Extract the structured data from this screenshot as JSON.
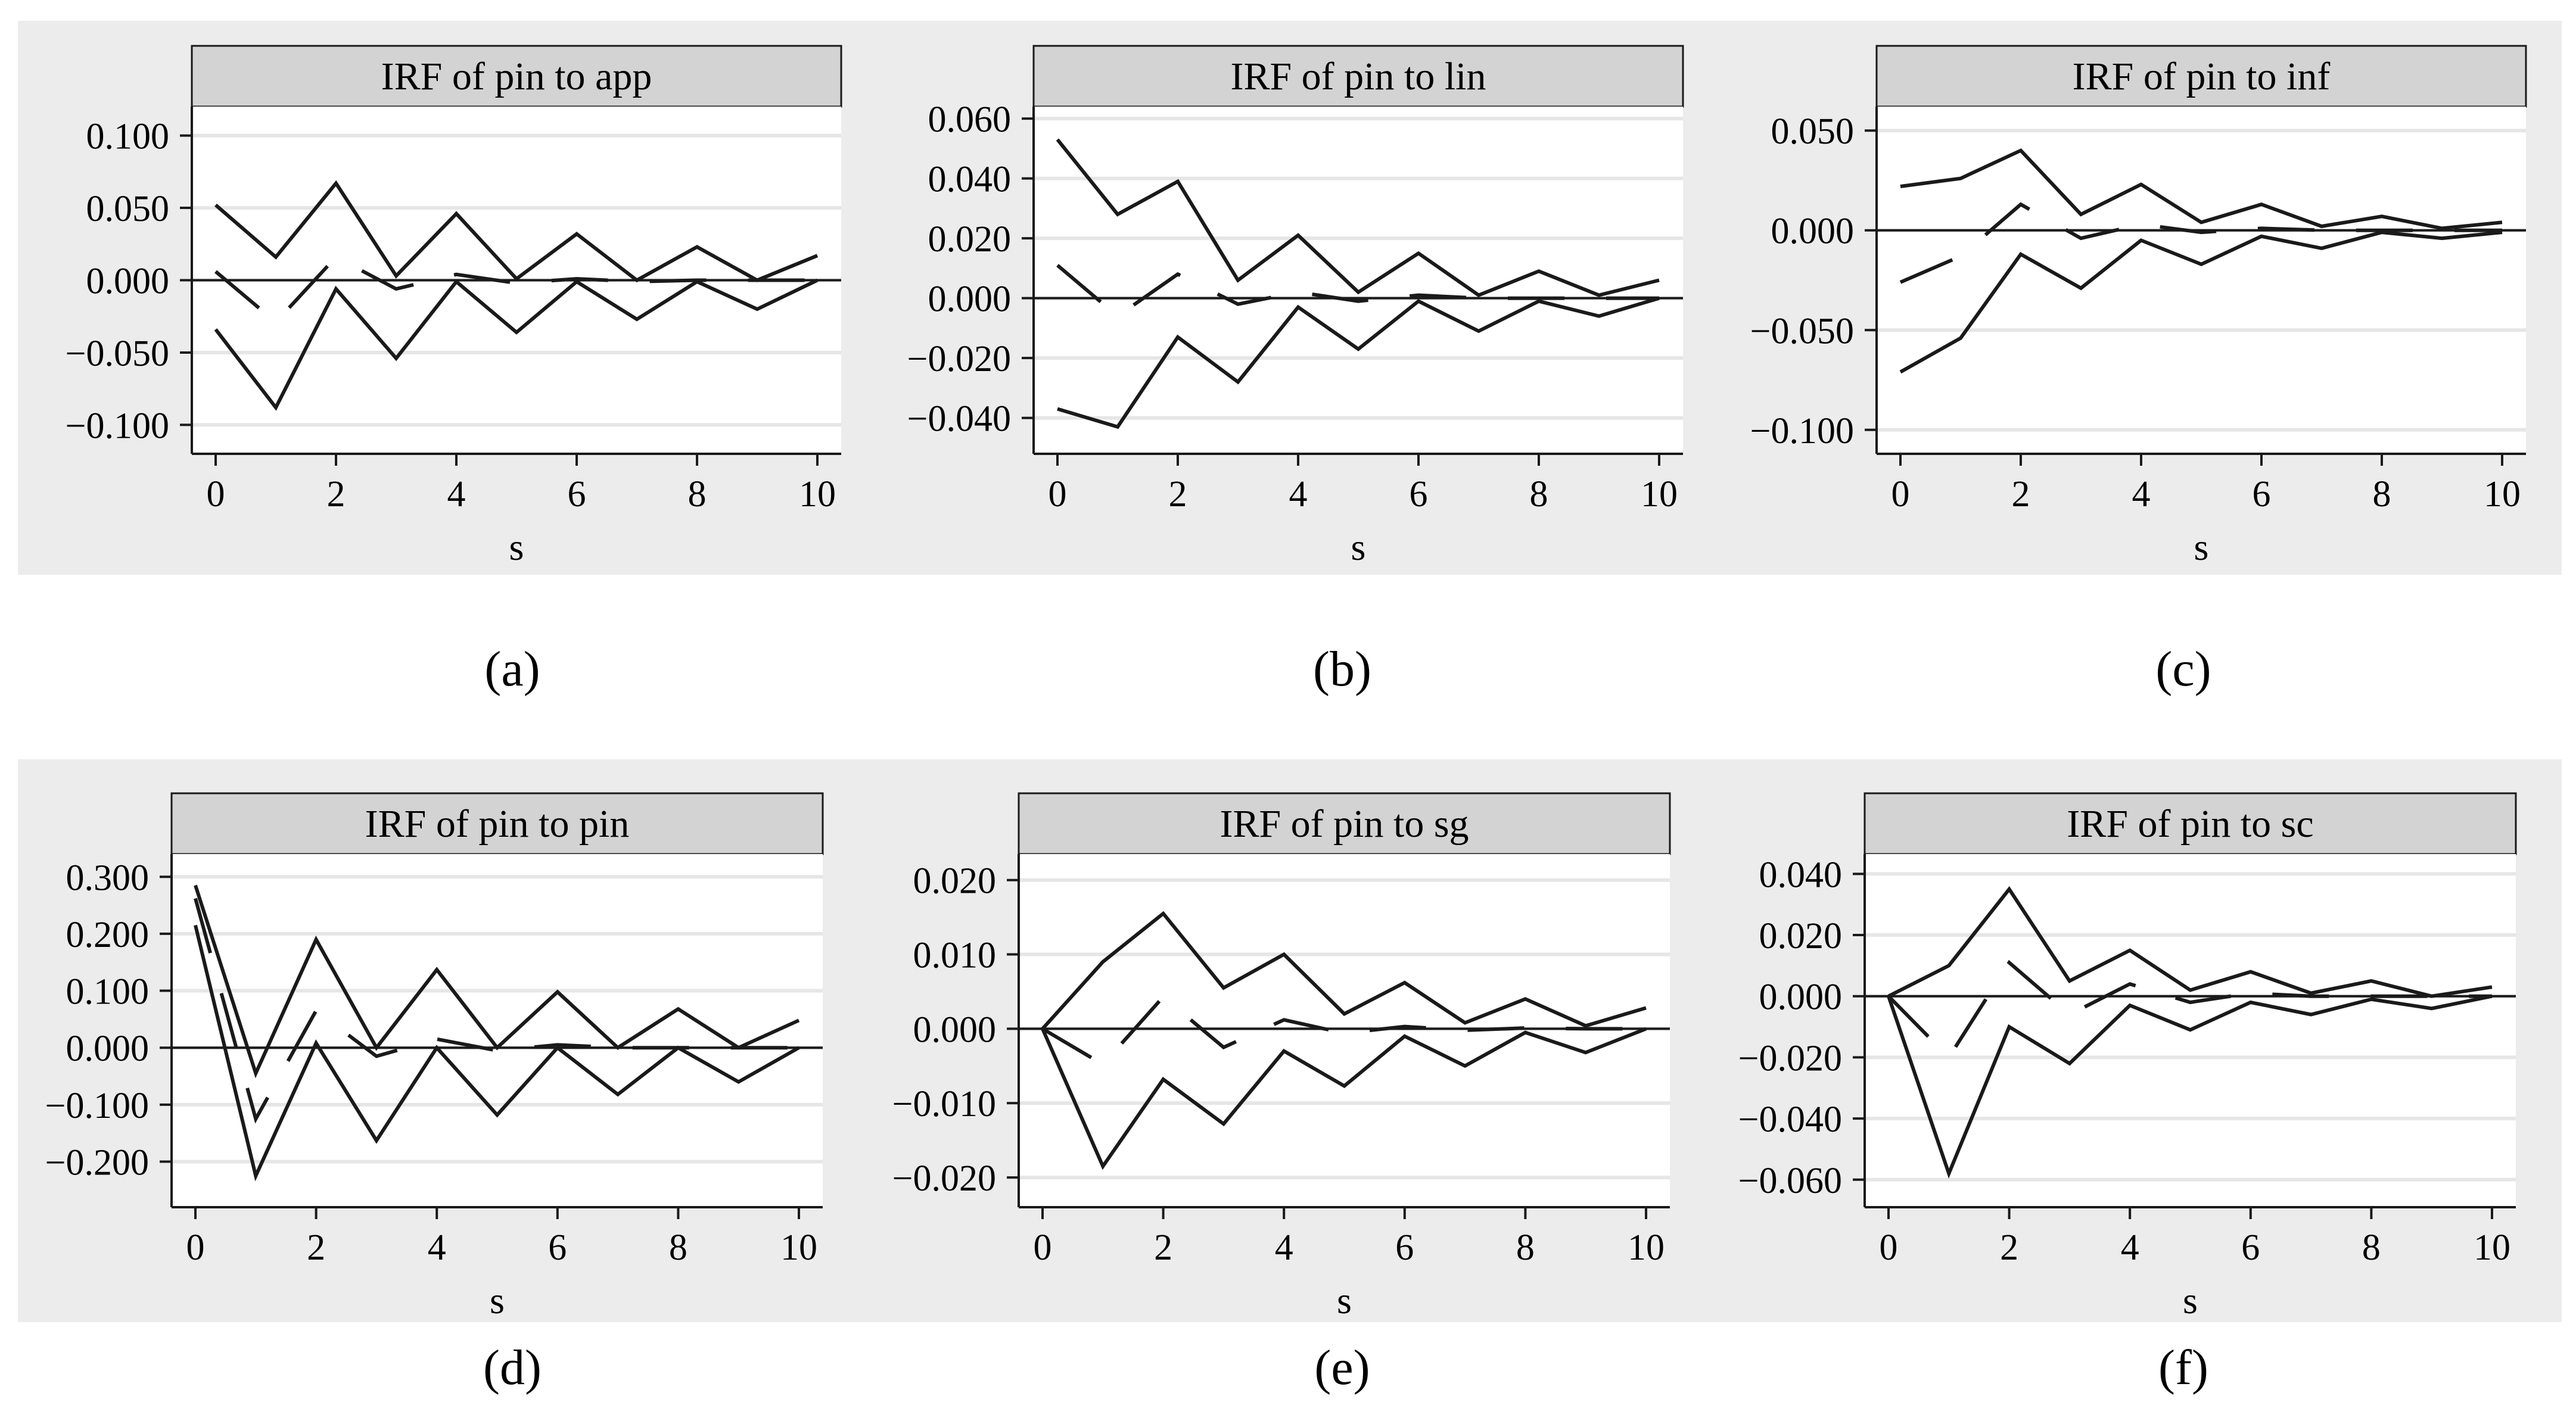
{
  "colors": {
    "panel_background": "#ececec",
    "plot_background": "#ffffff",
    "strip_fill": "#d3d3d3",
    "gridline": "#e6e6e6",
    "line": "#1a1a1a"
  },
  "chart_data": [
    {
      "type": "line",
      "panel_label": "(a)",
      "title": "IRF of pin to app",
      "xlabel": "s",
      "ylabel": "",
      "xlim": [
        0,
        10
      ],
      "ylim": [
        -0.12,
        0.12
      ],
      "xticks": [
        0,
        2,
        4,
        6,
        8,
        10
      ],
      "xtick_labels": [
        "0",
        "2",
        "4",
        "6",
        "8",
        "10"
      ],
      "yticks": [
        0.1,
        0.05,
        0,
        -0.05,
        -0.1
      ],
      "ytick_labels": [
        "0.100",
        "0.050",
        "0.000",
        "−0.050",
        "−0.100"
      ],
      "grid": true,
      "x": [
        0,
        1,
        2,
        3,
        4,
        5,
        6,
        7,
        8,
        9,
        10
      ],
      "series": [
        {
          "role": "upper",
          "style": "solid",
          "values": [
            0.052,
            0.016,
            0.067,
            0.003,
            0.046,
            0.001,
            0.032,
            0.0,
            0.023,
            0.0,
            0.017
          ]
        },
        {
          "role": "irf",
          "style": "dashed",
          "values": [
            0.006,
            -0.029,
            0.016,
            -0.006,
            0.004,
            -0.002,
            0.001,
            -0.001,
            0.0,
            0.0,
            0.0
          ]
        },
        {
          "role": "lower",
          "style": "solid",
          "values": [
            -0.034,
            -0.088,
            -0.006,
            -0.054,
            -0.001,
            -0.036,
            -0.001,
            -0.027,
            -0.001,
            -0.02,
            0.0
          ]
        }
      ]
    },
    {
      "type": "line",
      "panel_label": "(b)",
      "title": "IRF of pin to lin",
      "xlabel": "s",
      "ylabel": "",
      "xlim": [
        0,
        10
      ],
      "ylim": [
        -0.052,
        0.064
      ],
      "xticks": [
        0,
        2,
        4,
        6,
        8,
        10
      ],
      "xtick_labels": [
        "0",
        "2",
        "4",
        "6",
        "8",
        "10"
      ],
      "yticks": [
        0.06,
        0.04,
        0.02,
        0,
        -0.02,
        -0.04
      ],
      "ytick_labels": [
        "0.060",
        "0.040",
        "0.020",
        "0.000",
        "−0.020",
        "−0.040"
      ],
      "grid": true,
      "x": [
        0,
        1,
        2,
        3,
        4,
        5,
        6,
        7,
        8,
        9,
        10
      ],
      "series": [
        {
          "role": "upper",
          "style": "solid",
          "values": [
            0.053,
            0.028,
            0.039,
            0.006,
            0.021,
            0.002,
            0.015,
            0.001,
            0.009,
            0.001,
            0.006
          ]
        },
        {
          "role": "irf",
          "style": "dashed",
          "values": [
            0.011,
            -0.006,
            0.008,
            -0.002,
            0.002,
            -0.001,
            0.001,
            0.0,
            0.0,
            0.0,
            0.0
          ]
        },
        {
          "role": "lower",
          "style": "solid",
          "values": [
            -0.037,
            -0.043,
            -0.013,
            -0.028,
            -0.003,
            -0.017,
            -0.001,
            -0.011,
            -0.001,
            -0.006,
            0.0
          ]
        }
      ]
    },
    {
      "type": "line",
      "panel_label": "(c)",
      "title": "IRF of pin to inf",
      "xlabel": "s",
      "ylabel": "",
      "xlim": [
        0,
        10
      ],
      "ylim": [
        -0.112,
        0.062
      ],
      "xticks": [
        0,
        2,
        4,
        6,
        8,
        10
      ],
      "xtick_labels": [
        "0",
        "2",
        "4",
        "6",
        "8",
        "10"
      ],
      "yticks": [
        0.05,
        0,
        -0.05,
        -0.1
      ],
      "ytick_labels": [
        "0.050",
        "0.000",
        "−0.050",
        "−0.100"
      ],
      "grid": true,
      "x": [
        0,
        1,
        2,
        3,
        4,
        5,
        6,
        7,
        8,
        9,
        10
      ],
      "series": [
        {
          "role": "upper",
          "style": "solid",
          "values": [
            0.022,
            0.026,
            0.04,
            0.008,
            0.023,
            0.004,
            0.013,
            0.002,
            0.007,
            0.001,
            0.004
          ]
        },
        {
          "role": "irf",
          "style": "dashed",
          "values": [
            -0.026,
            -0.013,
            0.013,
            -0.004,
            0.003,
            -0.001,
            0.001,
            0.0,
            0.0,
            0.0,
            0.0
          ]
        },
        {
          "role": "lower",
          "style": "solid",
          "values": [
            -0.071,
            -0.054,
            -0.012,
            -0.029,
            -0.005,
            -0.017,
            -0.003,
            -0.009,
            -0.001,
            -0.004,
            -0.001
          ]
        }
      ]
    },
    {
      "type": "line",
      "panel_label": "(d)",
      "title": "IRF of pin to pin",
      "xlabel": "s",
      "ylabel": "",
      "xlim": [
        0,
        10
      ],
      "ylim": [
        -0.28,
        0.34
      ],
      "xticks": [
        0,
        2,
        4,
        6,
        8,
        10
      ],
      "xtick_labels": [
        "0",
        "2",
        "4",
        "6",
        "8",
        "10"
      ],
      "yticks": [
        0.3,
        0.2,
        0.1,
        0,
        -0.1,
        -0.2
      ],
      "ytick_labels": [
        "0.300",
        "0.200",
        "0.100",
        "0.000",
        "−0.100",
        "−0.200"
      ],
      "grid": true,
      "x": [
        0,
        1,
        2,
        3,
        4,
        5,
        6,
        7,
        8,
        9,
        10
      ],
      "series": [
        {
          "role": "upper",
          "style": "solid",
          "values": [
            0.285,
            -0.045,
            0.19,
            0.0,
            0.137,
            0.0,
            0.098,
            0.0,
            0.068,
            0.0,
            0.048
          ]
        },
        {
          "role": "irf",
          "style": "dashed",
          "values": [
            0.262,
            -0.125,
            0.065,
            -0.015,
            0.015,
            -0.005,
            0.005,
            0.0,
            0.0,
            0.0,
            0.0
          ]
        },
        {
          "role": "lower",
          "style": "solid",
          "values": [
            0.215,
            -0.225,
            0.008,
            -0.163,
            0.0,
            -0.118,
            0.0,
            -0.082,
            0.0,
            -0.06,
            0.0
          ]
        }
      ]
    },
    {
      "type": "line",
      "panel_label": "(e)",
      "title": "IRF of pin to sg",
      "xlabel": "s",
      "ylabel": "",
      "xlim": [
        0,
        10
      ],
      "ylim": [
        -0.024,
        0.0235
      ],
      "xticks": [
        0,
        2,
        4,
        6,
        8,
        10
      ],
      "xtick_labels": [
        "0",
        "2",
        "4",
        "6",
        "8",
        "10"
      ],
      "yticks": [
        0.02,
        0.01,
        0,
        -0.01,
        -0.02
      ],
      "ytick_labels": [
        "0.020",
        "0.010",
        "0.000",
        "−0.010",
        "−0.020"
      ],
      "grid": true,
      "x": [
        0,
        1,
        2,
        3,
        4,
        5,
        6,
        7,
        8,
        9,
        10
      ],
      "series": [
        {
          "role": "upper",
          "style": "solid",
          "values": [
            0.0,
            0.009,
            0.0155,
            0.0055,
            0.01,
            0.002,
            0.0062,
            0.0008,
            0.004,
            0.0004,
            0.0028
          ]
        },
        {
          "role": "irf",
          "style": "dashed",
          "values": [
            0.0,
            -0.0048,
            0.0043,
            -0.0025,
            0.0012,
            -0.0006,
            0.0003,
            -0.0002,
            0.0001,
            0.0,
            0.0
          ]
        },
        {
          "role": "lower",
          "style": "solid",
          "values": [
            0.0,
            -0.0185,
            -0.0068,
            -0.0128,
            -0.003,
            -0.0077,
            -0.001,
            -0.005,
            -0.0005,
            -0.0032,
            0.0
          ]
        }
      ]
    },
    {
      "type": "line",
      "panel_label": "(f)",
      "title": "IRF of pin to sc",
      "xlabel": "s",
      "ylabel": "",
      "xlim": [
        0,
        10
      ],
      "ylim": [
        -0.069,
        0.0465
      ],
      "xticks": [
        0,
        2,
        4,
        6,
        8,
        10
      ],
      "xtick_labels": [
        "0",
        "2",
        "4",
        "6",
        "8",
        "10"
      ],
      "yticks": [
        0.04,
        0.02,
        0,
        -0.02,
        -0.04,
        -0.06
      ],
      "ytick_labels": [
        "0.040",
        "0.020",
        "0.000",
        "−0.020",
        "−0.040",
        "−0.060"
      ],
      "grid": true,
      "x": [
        0,
        1,
        2,
        3,
        4,
        5,
        6,
        7,
        8,
        9,
        10
      ],
      "series": [
        {
          "role": "upper",
          "style": "solid",
          "values": [
            0.0,
            0.01,
            0.035,
            0.005,
            0.015,
            0.002,
            0.008,
            0.001,
            0.005,
            0.0,
            0.003
          ]
        },
        {
          "role": "irf",
          "style": "dashed",
          "values": [
            0.0,
            -0.02,
            0.011,
            -0.006,
            0.004,
            -0.002,
            0.001,
            0.0,
            0.0,
            0.0,
            0.0
          ]
        },
        {
          "role": "lower",
          "style": "solid",
          "values": [
            0.0,
            -0.058,
            -0.01,
            -0.022,
            -0.003,
            -0.011,
            -0.002,
            -0.006,
            -0.001,
            -0.004,
            0.0
          ]
        }
      ]
    }
  ]
}
